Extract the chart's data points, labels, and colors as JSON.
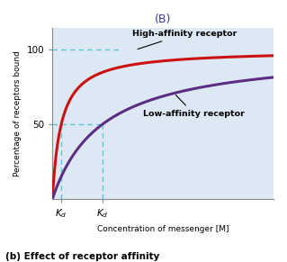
{
  "title": "(B)",
  "xlabel": "Concentration of messenger [M]",
  "ylabel": "Percentage of receptors bound",
  "caption": "(b) Effect of receptor affinity",
  "high_affinity_label": "High-affinity receptor",
  "low_affinity_label": "Low-affinity receptor",
  "high_affinity_color": "#cc1111",
  "low_affinity_color": "#5c2d82",
  "background_color": "#dce9f5",
  "fig_background": "#ffffff",
  "dashed_color": "#5bc8d0",
  "kd_high": 0.08,
  "kd_low": 0.45,
  "y_ticks": [
    50,
    100
  ],
  "x_max": 2.0,
  "ylim_max": 115,
  "title_fontsize": 9,
  "axis_label_fontsize": 6.5,
  "tick_fontsize": 7.5,
  "caption_fontsize": 7.5,
  "curve_label_fontsize": 6.8
}
